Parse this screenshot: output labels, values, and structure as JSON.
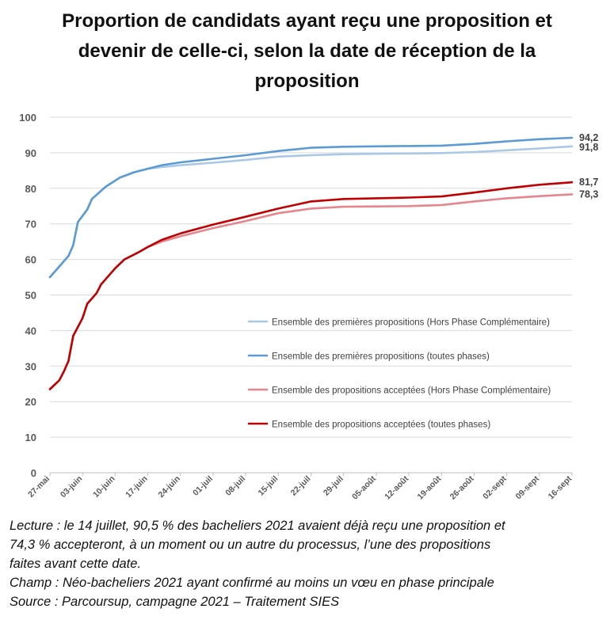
{
  "title_lines": [
    "Proportion de candidats ayant reçu une proposition et",
    "devenir de celle-ci, selon la date de réception de la",
    "proposition"
  ],
  "notes": {
    "lecture_lines": [
      "Lecture : le 14 juillet, 90,5 % des bacheliers 2021 avaient déjà reçu une proposition et",
      "74,3 % accepteront, à un moment ou un autre du processus, l’une des propositions",
      "faites avant cette date."
    ],
    "champ": "Champ : Néo-bacheliers 2021 ayant confirmé au moins un vœu en phase principale",
    "source": "Source : Parcoursup, campagne 2021 – Traitement SIES"
  },
  "chart_data": {
    "type": "line",
    "title": "Proportion de candidats ayant reçu une proposition et devenir de celle-ci, selon la date de réception de la proposition",
    "xlabel": "",
    "ylabel": "",
    "ylim": [
      0,
      100
    ],
    "yticks": [
      "0",
      "10",
      "20",
      "30",
      "40",
      "50",
      "60",
      "70",
      "80",
      "90",
      "100"
    ],
    "xlim": [
      "27-mai",
      "16-sept"
    ],
    "xticks": [
      "27-mai",
      "03-juin",
      "10-juin",
      "17-juin",
      "24-juin",
      "01-juil",
      "08-juil",
      "15-juil",
      "22-juil",
      "29-juil",
      "05-août",
      "12-août",
      "19-août",
      "26-août",
      "02-sept",
      "09-sept",
      "16-sept"
    ],
    "grid": true,
    "legend_placement": "right-center",
    "series": [
      {
        "name": "Ensemble des premières propositions (Hors Phase Complémentaire)",
        "color": "#a9c8e8",
        "end_label": "91,8",
        "points": [
          [
            "27-mai",
            55.0
          ],
          [
            "29-mai",
            58.0
          ],
          [
            "31-mai",
            61.0
          ],
          [
            "01-juin",
            64.0
          ],
          [
            "02-juin",
            70.5
          ],
          [
            "04-juin",
            74.0
          ],
          [
            "05-juin",
            77.0
          ],
          [
            "08-juin",
            80.5
          ],
          [
            "11-juin",
            83.0
          ],
          [
            "14-juin",
            84.5
          ],
          [
            "17-juin",
            85.5
          ],
          [
            "20-juin",
            86.0
          ],
          [
            "24-juin",
            86.5
          ],
          [
            "01-juil",
            87.2
          ],
          [
            "08-juil",
            88.0
          ],
          [
            "15-juil",
            88.9
          ],
          [
            "22-juil",
            89.3
          ],
          [
            "29-juil",
            89.6
          ],
          [
            "05-août",
            89.7
          ],
          [
            "12-août",
            89.8
          ],
          [
            "19-août",
            89.9
          ],
          [
            "26-août",
            90.2
          ],
          [
            "02-sept",
            90.7
          ],
          [
            "09-sept",
            91.2
          ],
          [
            "16-sept",
            91.8
          ]
        ]
      },
      {
        "name": "Ensemble des premières propositions (toutes phases)",
        "color": "#5b9bd5",
        "end_label": "94,2",
        "points": [
          [
            "27-mai",
            55.0
          ],
          [
            "29-mai",
            58.0
          ],
          [
            "31-mai",
            61.0
          ],
          [
            "01-juin",
            64.0
          ],
          [
            "02-juin",
            70.5
          ],
          [
            "04-juin",
            74.0
          ],
          [
            "05-juin",
            77.0
          ],
          [
            "08-juin",
            80.5
          ],
          [
            "11-juin",
            83.0
          ],
          [
            "14-juin",
            84.5
          ],
          [
            "17-juin",
            85.5
          ],
          [
            "20-juin",
            86.5
          ],
          [
            "24-juin",
            87.3
          ],
          [
            "01-juil",
            88.3
          ],
          [
            "08-juil",
            89.3
          ],
          [
            "15-juil",
            90.5
          ],
          [
            "22-juil",
            91.4
          ],
          [
            "29-juil",
            91.7
          ],
          [
            "05-août",
            91.8
          ],
          [
            "12-août",
            91.9
          ],
          [
            "19-août",
            92.0
          ],
          [
            "26-août",
            92.5
          ],
          [
            "02-sept",
            93.2
          ],
          [
            "09-sept",
            93.8
          ],
          [
            "16-sept",
            94.2
          ]
        ]
      },
      {
        "name": "Ensemble des propositions acceptées (Hors Phase Complémentaire)",
        "color": "#e6868c",
        "end_label": "78,3",
        "points": [
          [
            "27-mai",
            23.5
          ],
          [
            "29-mai",
            26.0
          ],
          [
            "30-mai",
            28.5
          ],
          [
            "31-mai",
            31.5
          ],
          [
            "01-juin",
            38.5
          ],
          [
            "03-juin",
            43.5
          ],
          [
            "04-juin",
            47.5
          ],
          [
            "06-juin",
            50.5
          ],
          [
            "07-juin",
            53.0
          ],
          [
            "10-juin",
            57.5
          ],
          [
            "12-juin",
            60.0
          ],
          [
            "15-juin",
            62.0
          ],
          [
            "17-juin",
            63.5
          ],
          [
            "20-juin",
            65.0
          ],
          [
            "24-juin",
            66.5
          ],
          [
            "01-juil",
            68.8
          ],
          [
            "08-juil",
            70.8
          ],
          [
            "15-juil",
            73.0
          ],
          [
            "22-juil",
            74.3
          ],
          [
            "29-juil",
            74.8
          ],
          [
            "05-août",
            74.9
          ],
          [
            "12-août",
            75.0
          ],
          [
            "19-août",
            75.3
          ],
          [
            "26-août",
            76.3
          ],
          [
            "02-sept",
            77.2
          ],
          [
            "09-sept",
            77.8
          ],
          [
            "16-sept",
            78.3
          ]
        ]
      },
      {
        "name": "Ensemble des propositions acceptées (toutes phases)",
        "color": "#c00000",
        "end_label": "81,7",
        "points": [
          [
            "27-mai",
            23.5
          ],
          [
            "29-mai",
            26.0
          ],
          [
            "30-mai",
            28.5
          ],
          [
            "31-mai",
            31.5
          ],
          [
            "01-juin",
            38.5
          ],
          [
            "03-juin",
            43.5
          ],
          [
            "04-juin",
            47.5
          ],
          [
            "06-juin",
            50.5
          ],
          [
            "07-juin",
            53.0
          ],
          [
            "10-juin",
            57.5
          ],
          [
            "12-juin",
            60.0
          ],
          [
            "15-juin",
            62.0
          ],
          [
            "17-juin",
            63.5
          ],
          [
            "20-juin",
            65.5
          ],
          [
            "24-juin",
            67.3
          ],
          [
            "01-juil",
            69.8
          ],
          [
            "08-juil",
            72.0
          ],
          [
            "15-juil",
            74.3
          ],
          [
            "22-juil",
            76.3
          ],
          [
            "29-juil",
            77.0
          ],
          [
            "05-août",
            77.2
          ],
          [
            "12-août",
            77.4
          ],
          [
            "19-août",
            77.7
          ],
          [
            "26-août",
            78.8
          ],
          [
            "02-sept",
            80.0
          ],
          [
            "09-sept",
            81.0
          ],
          [
            "16-sept",
            81.7
          ]
        ]
      }
    ]
  }
}
